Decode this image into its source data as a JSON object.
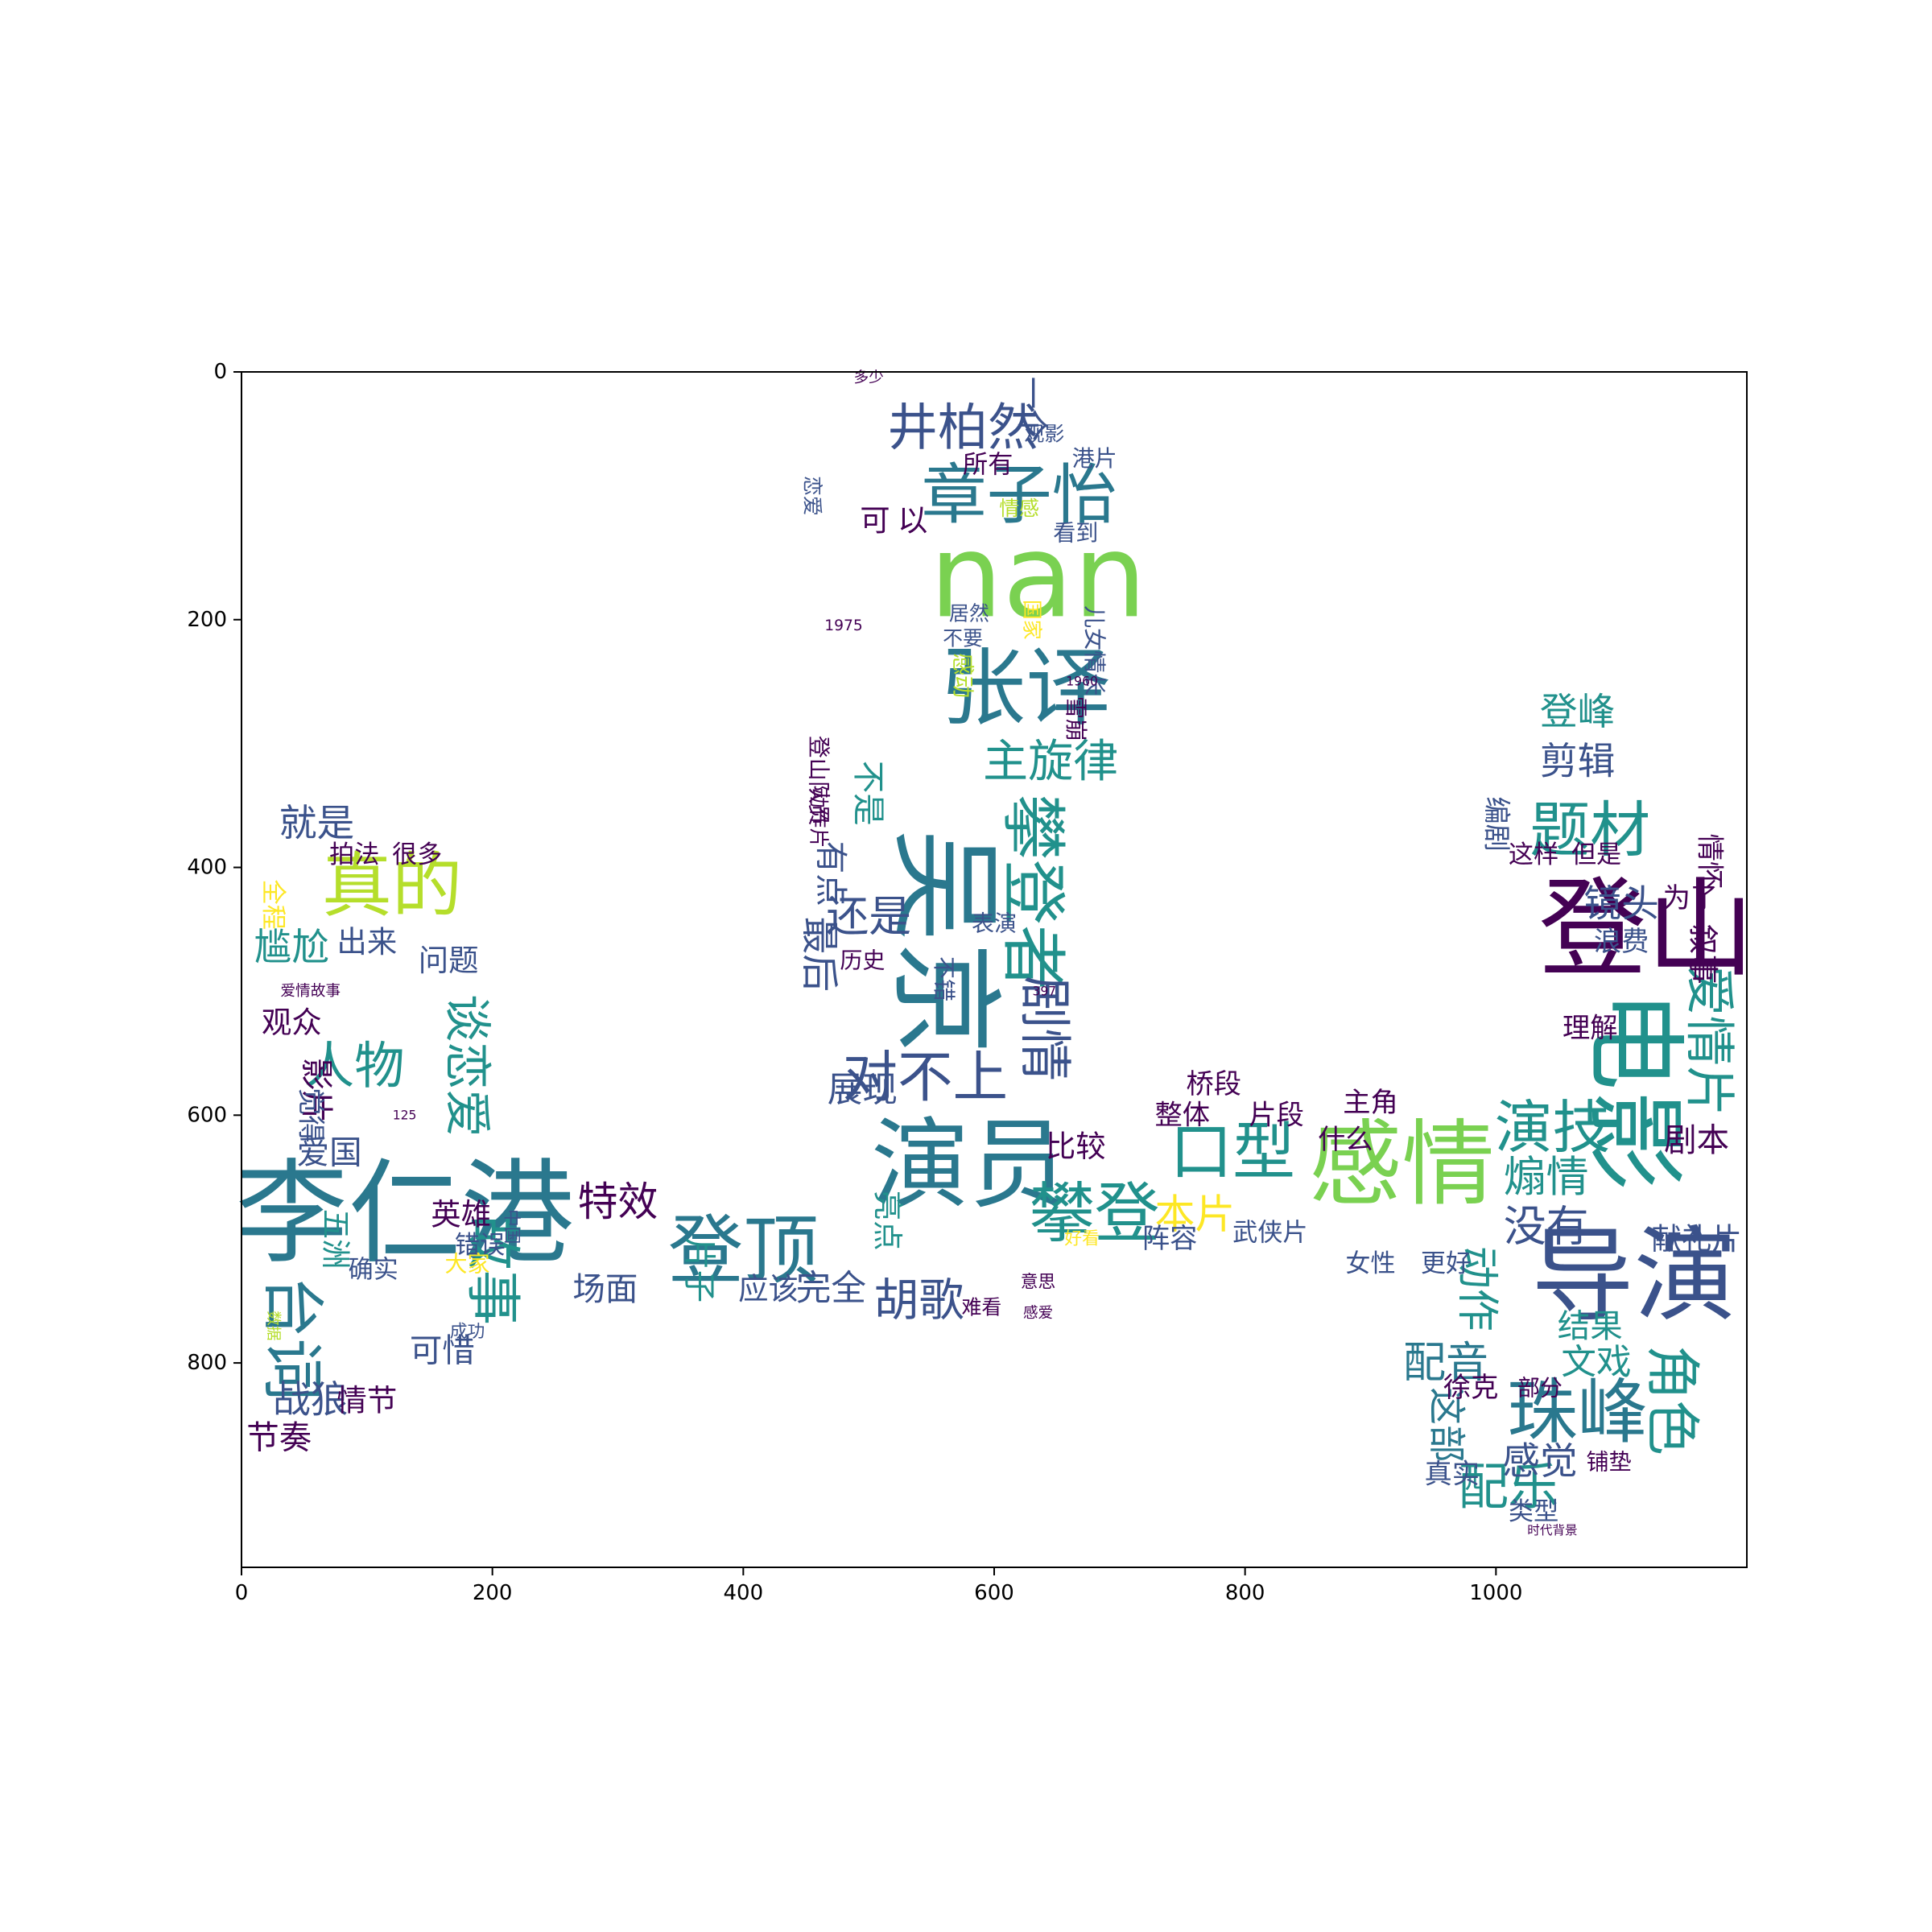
{
  "chart_data": {
    "type": "wordcloud",
    "title": "",
    "xlabel": "",
    "ylabel": "",
    "xlim": [
      0,
      1200
    ],
    "ylim": [
      965,
      0
    ],
    "x_ticks": [
      0,
      200,
      400,
      600,
      800,
      1000
    ],
    "y_ticks": [
      0,
      200,
      400,
      600,
      800
    ],
    "x_tick_labels": [
      "0",
      "200",
      "400",
      "600",
      "800",
      "1000"
    ],
    "y_tick_labels": [
      "0",
      "200",
      "400",
      "600",
      "800"
    ],
    "colormap": "viridis",
    "words": [
      {
        "text": "nan",
        "x": 635,
        "y": 165,
        "size": 92,
        "color": "#7ad151",
        "rot": 0
      },
      {
        "text": "张译",
        "x": 625,
        "y": 255,
        "size": 68,
        "color": "#2a788e",
        "rot": 0
      },
      {
        "text": "章子怡",
        "x": 620,
        "y": 100,
        "size": 52,
        "color": "#2a788e",
        "rot": 0
      },
      {
        "text": "井柏然",
        "x": 575,
        "y": 45,
        "size": 40,
        "color": "#3b528b",
        "rot": 0
      },
      {
        "text": "吴京",
        "x": 560,
        "y": 460,
        "size": 90,
        "color": "#2a788e",
        "rot": 90
      },
      {
        "text": "攀登者",
        "x": 630,
        "y": 420,
        "size": 52,
        "color": "#21918c",
        "rot": 90
      },
      {
        "text": "剧情",
        "x": 640,
        "y": 530,
        "size": 42,
        "color": "#3b528b",
        "rot": 90
      },
      {
        "text": "主旋律",
        "x": 645,
        "y": 315,
        "size": 36,
        "color": "#21918c",
        "rot": 0
      },
      {
        "text": "演员",
        "x": 580,
        "y": 640,
        "size": 78,
        "color": "#2a788e",
        "rot": 0
      },
      {
        "text": "对不上",
        "x": 545,
        "y": 570,
        "size": 44,
        "color": "#3b528b",
        "rot": 0
      },
      {
        "text": "登顶",
        "x": 400,
        "y": 710,
        "size": 60,
        "color": "#2a788e",
        "rot": 0
      },
      {
        "text": "特效",
        "x": 300,
        "y": 670,
        "size": 32,
        "color": "#440154",
        "rot": 0
      },
      {
        "text": "场面",
        "x": 290,
        "y": 740,
        "size": 26,
        "color": "#3b528b",
        "rot": 0
      },
      {
        "text": "胡歌",
        "x": 540,
        "y": 750,
        "size": 36,
        "color": "#3b528b",
        "rot": 0
      },
      {
        "text": "攀登",
        "x": 680,
        "y": 680,
        "size": 52,
        "color": "#21918c",
        "rot": 0
      },
      {
        "text": "口型",
        "x": 790,
        "y": 630,
        "size": 50,
        "color": "#21918c",
        "rot": 0
      },
      {
        "text": "感情",
        "x": 925,
        "y": 640,
        "size": 74,
        "color": "#7ad151",
        "rot": 0
      },
      {
        "text": "本片",
        "x": 760,
        "y": 680,
        "size": 32,
        "color": "#fde725",
        "rot": 0
      },
      {
        "text": "李仁港",
        "x": 130,
        "y": 680,
        "size": 90,
        "color": "#2a788e",
        "rot": 0
      },
      {
        "text": "真的",
        "x": 120,
        "y": 415,
        "size": 56,
        "color": "#b5de2b",
        "rot": 0
      },
      {
        "text": "人物",
        "x": 90,
        "y": 560,
        "size": 40,
        "color": "#21918c",
        "rot": 0
      },
      {
        "text": "台词",
        "x": 40,
        "y": 780,
        "size": 50,
        "color": "#2a788e",
        "rot": 90
      },
      {
        "text": "故事",
        "x": 200,
        "y": 725,
        "size": 44,
        "color": "#21918c",
        "rot": 90
      },
      {
        "text": "谈恋爱",
        "x": 180,
        "y": 560,
        "size": 38,
        "color": "#21918c",
        "rot": 90
      },
      {
        "text": "战狼",
        "x": 55,
        "y": 830,
        "size": 30,
        "color": "#3b528b",
        "rot": 0
      },
      {
        "text": "尴尬",
        "x": 40,
        "y": 465,
        "size": 30,
        "color": "#21918c",
        "rot": 0
      },
      {
        "text": "就是",
        "x": 60,
        "y": 365,
        "size": 30,
        "color": "#3b528b",
        "rot": 0
      },
      {
        "text": "登山",
        "x": 1120,
        "y": 450,
        "size": 86,
        "color": "#440154",
        "rot": 0
      },
      {
        "text": "电影",
        "x": 1110,
        "y": 580,
        "size": 80,
        "color": "#21918c",
        "rot": 90
      },
      {
        "text": "导演",
        "x": 1110,
        "y": 730,
        "size": 82,
        "color": "#3b528b",
        "rot": 0
      },
      {
        "text": "珠峰",
        "x": 1065,
        "y": 840,
        "size": 56,
        "color": "#2a788e",
        "rot": 0
      },
      {
        "text": "题材",
        "x": 1075,
        "y": 370,
        "size": 48,
        "color": "#21918c",
        "rot": 0
      },
      {
        "text": "演技",
        "x": 1045,
        "y": 610,
        "size": 46,
        "color": "#21918c",
        "rot": 0
      },
      {
        "text": "配乐",
        "x": 1010,
        "y": 900,
        "size": 40,
        "color": "#21918c",
        "rot": 0
      },
      {
        "text": "角色",
        "x": 1140,
        "y": 830,
        "size": 44,
        "color": "#21918c",
        "rot": 90
      },
      {
        "text": "爱情片",
        "x": 1170,
        "y": 540,
        "size": 40,
        "color": "#21918c",
        "rot": 90
      },
      {
        "text": "登峰",
        "x": 1065,
        "y": 275,
        "size": 30,
        "color": "#21918c",
        "rot": 0
      },
      {
        "text": "剪辑",
        "x": 1065,
        "y": 315,
        "size": 30,
        "color": "#3b528b",
        "rot": 0
      },
      {
        "text": "镜头",
        "x": 1100,
        "y": 430,
        "size": 30,
        "color": "#3b528b",
        "rot": 0
      },
      {
        "text": "没有",
        "x": 1040,
        "y": 690,
        "size": 34,
        "color": "#3b528b",
        "rot": 0
      },
      {
        "text": "煽情",
        "x": 1040,
        "y": 650,
        "size": 34,
        "color": "#21918c",
        "rot": 0
      },
      {
        "text": "配音",
        "x": 960,
        "y": 800,
        "size": 34,
        "color": "#2a788e",
        "rot": 0
      },
      {
        "text": "感觉",
        "x": 1035,
        "y": 880,
        "size": 30,
        "color": "#3b528b",
        "rot": 0
      },
      {
        "text": "最后",
        "x": 460,
        "y": 470,
        "size": 30,
        "color": "#3b528b",
        "rot": 90
      },
      {
        "text": "还是",
        "x": 500,
        "y": 440,
        "size": 34,
        "color": "#3b528b",
        "rot": 0
      },
      {
        "text": "一个",
        "x": 630,
        "y": 30,
        "size": 26,
        "color": "#3b528b",
        "rot": 90
      },
      {
        "text": "爱国",
        "x": 70,
        "y": 630,
        "size": 26,
        "color": "#3b528b",
        "rot": 0
      },
      {
        "text": "英雄",
        "x": 175,
        "y": 680,
        "size": 24,
        "color": "#440154",
        "rot": 0
      },
      {
        "text": "节奏",
        "x": 30,
        "y": 860,
        "size": 26,
        "color": "#440154",
        "rot": 0
      },
      {
        "text": "情节",
        "x": 100,
        "y": 830,
        "size": 24,
        "color": "#440154",
        "rot": 0
      },
      {
        "text": "可惜",
        "x": 160,
        "y": 790,
        "size": 26,
        "color": "#3b528b",
        "rot": 0
      },
      {
        "text": "完全",
        "x": 470,
        "y": 740,
        "size": 28,
        "color": "#3b528b",
        "rot": 0
      },
      {
        "text": "应该",
        "x": 420,
        "y": 740,
        "size": 24,
        "color": "#3b528b",
        "rot": 0
      },
      {
        "text": "展现",
        "x": 495,
        "y": 580,
        "size": 28,
        "color": "#3b528b",
        "rot": 0
      },
      {
        "text": "剧本",
        "x": 1160,
        "y": 620,
        "size": 26,
        "color": "#440154",
        "rot": 0
      },
      {
        "text": "结果",
        "x": 1075,
        "y": 770,
        "size": 26,
        "color": "#21918c",
        "rot": 0
      },
      {
        "text": "文戏",
        "x": 1080,
        "y": 800,
        "size": 28,
        "color": "#21918c",
        "rot": 0
      },
      {
        "text": "动作",
        "x": 985,
        "y": 740,
        "size": 34,
        "color": "#21918c",
        "rot": 90
      },
      {
        "text": "这部",
        "x": 960,
        "y": 850,
        "size": 30,
        "color": "#2a788e",
        "rot": 90
      },
      {
        "text": "观众",
        "x": 40,
        "y": 525,
        "size": 24,
        "color": "#440154",
        "rot": 0
      },
      {
        "text": "影片",
        "x": 60,
        "y": 580,
        "size": 26,
        "color": "#440154",
        "rot": 90
      },
      {
        "text": "问题",
        "x": 165,
        "y": 475,
        "size": 24,
        "color": "#3b528b",
        "rot": 0
      },
      {
        "text": "出来",
        "x": 100,
        "y": 460,
        "size": 24,
        "color": "#3b528b",
        "rot": 0
      },
      {
        "text": "比较",
        "x": 665,
        "y": 625,
        "size": 24,
        "color": "#440154",
        "rot": 0
      },
      {
        "text": "整体",
        "x": 750,
        "y": 600,
        "size": 22,
        "color": "#440154",
        "rot": 0
      },
      {
        "text": "桥段",
        "x": 775,
        "y": 575,
        "size": 22,
        "color": "#440154",
        "rot": 0
      },
      {
        "text": "片段",
        "x": 825,
        "y": 600,
        "size": 22,
        "color": "#440154",
        "rot": 0
      },
      {
        "text": "主角",
        "x": 900,
        "y": 590,
        "size": 22,
        "color": "#440154",
        "rot": 0
      },
      {
        "text": "什么",
        "x": 880,
        "y": 620,
        "size": 22,
        "color": "#440154",
        "rot": 0
      },
      {
        "text": "阵容",
        "x": 740,
        "y": 700,
        "size": 22,
        "color": "#3b528b",
        "rot": 0
      },
      {
        "text": "武侠片",
        "x": 820,
        "y": 695,
        "size": 20,
        "color": "#3b528b",
        "rot": 0
      },
      {
        "text": "女性",
        "x": 900,
        "y": 720,
        "size": 20,
        "color": "#3b528b",
        "rot": 0
      },
      {
        "text": "更好",
        "x": 960,
        "y": 720,
        "size": 20,
        "color": "#3b528b",
        "rot": 0
      },
      {
        "text": "所有",
        "x": 595,
        "y": 75,
        "size": 20,
        "color": "#440154",
        "rot": 0
      },
      {
        "text": "以",
        "x": 535,
        "y": 120,
        "size": 24,
        "color": "#440154",
        "rot": 0
      },
      {
        "text": "可",
        "x": 505,
        "y": 120,
        "size": 24,
        "color": "#440154",
        "rot": 0
      },
      {
        "text": "看到",
        "x": 665,
        "y": 130,
        "size": 18,
        "color": "#3b528b",
        "rot": 0
      },
      {
        "text": "港片",
        "x": 680,
        "y": 70,
        "size": 18,
        "color": "#3b528b",
        "rot": 0
      },
      {
        "text": "儿女情长",
        "x": 680,
        "y": 225,
        "size": 18,
        "color": "#3b528b",
        "rot": 90
      },
      {
        "text": "五洲",
        "x": 75,
        "y": 700,
        "size": 24,
        "color": "#21918c",
        "rot": 90
      },
      {
        "text": "确实",
        "x": 105,
        "y": 725,
        "size": 20,
        "color": "#3b528b",
        "rot": 0
      },
      {
        "text": "错误",
        "x": 190,
        "y": 705,
        "size": 20,
        "color": "#3b528b",
        "rot": 0
      },
      {
        "text": "大家",
        "x": 180,
        "y": 720,
        "size": 18,
        "color": "#fde725",
        "rot": 0
      },
      {
        "text": "浪费",
        "x": 1100,
        "y": 460,
        "size": 22,
        "color": "#3b528b",
        "rot": 0
      },
      {
        "text": "理解",
        "x": 1075,
        "y": 530,
        "size": 22,
        "color": "#440154",
        "rot": 0
      },
      {
        "text": "叙事",
        "x": 1165,
        "y": 470,
        "size": 24,
        "color": "#440154",
        "rot": 90
      },
      {
        "text": "献礼片",
        "x": 1160,
        "y": 700,
        "size": 24,
        "color": "#3b528b",
        "rot": 0
      },
      {
        "text": "为了",
        "x": 1155,
        "y": 425,
        "size": 22,
        "color": "#440154",
        "rot": 0
      },
      {
        "text": "真实",
        "x": 965,
        "y": 890,
        "size": 22,
        "color": "#3b528b",
        "rot": 0
      },
      {
        "text": "徐克",
        "x": 980,
        "y": 820,
        "size": 22,
        "color": "#440154",
        "rot": 0
      },
      {
        "text": "类型",
        "x": 1030,
        "y": 920,
        "size": 20,
        "color": "#3b528b",
        "rot": 0
      },
      {
        "text": "部分",
        "x": 1035,
        "y": 820,
        "size": 18,
        "color": "#440154",
        "rot": 0
      },
      {
        "text": "铺垫",
        "x": 1090,
        "y": 880,
        "size": 18,
        "color": "#440154",
        "rot": 0
      },
      {
        "text": "这样",
        "x": 1030,
        "y": 390,
        "size": 20,
        "color": "#440154",
        "rot": 0
      },
      {
        "text": "但是",
        "x": 1080,
        "y": 390,
        "size": 20,
        "color": "#440154",
        "rot": 0
      },
      {
        "text": "情怀",
        "x": 1170,
        "y": 395,
        "size": 22,
        "color": "#440154",
        "rot": 90
      },
      {
        "text": "编剧",
        "x": 1000,
        "y": 365,
        "size": 22,
        "color": "#3b528b",
        "rot": 90
      },
      {
        "text": "历史",
        "x": 495,
        "y": 475,
        "size": 18,
        "color": "#440154",
        "rot": 0
      },
      {
        "text": "片子",
        "x": 365,
        "y": 725,
        "size": 26,
        "color": "#21918c",
        "rot": 90
      },
      {
        "text": "雪崩",
        "x": 665,
        "y": 280,
        "size": 18,
        "color": "#440154",
        "rot": 90
      },
      {
        "text": "拍法",
        "x": 90,
        "y": 390,
        "size": 20,
        "color": "#440154",
        "rot": 0
      },
      {
        "text": "很多",
        "x": 140,
        "y": 390,
        "size": 20,
        "color": "#440154",
        "rot": 0
      },
      {
        "text": "觉得",
        "x": 55,
        "y": 600,
        "size": 22,
        "color": "#3b528b",
        "rot": 90
      },
      {
        "text": "全程",
        "x": 25,
        "y": 430,
        "size": 20,
        "color": "#fde725",
        "rot": 90
      },
      {
        "text": "感动",
        "x": 575,
        "y": 245,
        "size": 18,
        "color": "#b5de2b",
        "rot": 90
      },
      {
        "text": "不要",
        "x": 575,
        "y": 215,
        "size": 16,
        "color": "#3b528b",
        "rot": 0
      },
      {
        "text": "居然",
        "x": 580,
        "y": 195,
        "size": 16,
        "color": "#3b528b",
        "rot": 0
      },
      {
        "text": "恋爱",
        "x": 455,
        "y": 100,
        "size": 16,
        "color": "#3b528b",
        "rot": 90
      },
      {
        "text": "情感",
        "x": 620,
        "y": 110,
        "size": 16,
        "color": "#b5de2b",
        "rot": 0
      },
      {
        "text": "观影",
        "x": 640,
        "y": 50,
        "size": 16,
        "color": "#3b528b",
        "rot": 0
      },
      {
        "text": "国家",
        "x": 630,
        "y": 200,
        "size": 16,
        "color": "#fde725",
        "rot": 90
      },
      {
        "text": "成功",
        "x": 180,
        "y": 775,
        "size": 14,
        "color": "#3b528b",
        "rot": 0
      },
      {
        "text": "中国",
        "x": 215,
        "y": 690,
        "size": 14,
        "color": "#3b528b",
        "rot": 90
      },
      {
        "text": "数据",
        "x": 25,
        "y": 770,
        "size": 12,
        "color": "#b5de2b",
        "rot": 90
      },
      {
        "text": "爱情故事",
        "x": 55,
        "y": 500,
        "size": 12,
        "color": "#440154",
        "rot": 0
      },
      {
        "text": "时代背景",
        "x": 1045,
        "y": 935,
        "size": 10,
        "color": "#440154",
        "rot": 0
      },
      {
        "text": "1975",
        "x": 480,
        "y": 205,
        "size": 12,
        "color": "#440154",
        "rot": 0
      },
      {
        "text": "1960",
        "x": 670,
        "y": 250,
        "size": 10,
        "color": "#440154",
        "rot": 0
      },
      {
        "text": "397",
        "x": 640,
        "y": 500,
        "size": 10,
        "color": "#440154",
        "rot": 0
      },
      {
        "text": "125",
        "x": 130,
        "y": 600,
        "size": 10,
        "color": "#440154",
        "rot": 0
      },
      {
        "text": "多少",
        "x": 500,
        "y": 5,
        "size": 12,
        "color": "#440154",
        "rot": 0
      },
      {
        "text": "不错",
        "x": 560,
        "y": 490,
        "size": 18,
        "color": "#3b528b",
        "rot": 90
      },
      {
        "text": "表演",
        "x": 600,
        "y": 445,
        "size": 18,
        "color": "#3b528b",
        "rot": 0
      },
      {
        "text": "有点",
        "x": 470,
        "y": 405,
        "size": 26,
        "color": "#3b528b",
        "rot": 90
      },
      {
        "text": "不是",
        "x": 500,
        "y": 340,
        "size": 26,
        "color": "#21918c",
        "rot": 90
      },
      {
        "text": "登山队员",
        "x": 460,
        "y": 330,
        "size": 18,
        "color": "#440154",
        "rot": 90
      },
      {
        "text": "动作片",
        "x": 460,
        "y": 360,
        "size": 16,
        "color": "#440154",
        "rot": 90
      },
      {
        "text": "意思",
        "x": 635,
        "y": 735,
        "size": 14,
        "color": "#440154",
        "rot": 0
      },
      {
        "text": "好看",
        "x": 670,
        "y": 700,
        "size": 14,
        "color": "#fde725",
        "rot": 0
      },
      {
        "text": "亮点",
        "x": 515,
        "y": 685,
        "size": 24,
        "color": "#21918c",
        "rot": 90
      },
      {
        "text": "难看",
        "x": 590,
        "y": 755,
        "size": 16,
        "color": "#440154",
        "rot": 0
      },
      {
        "text": "感爱",
        "x": 635,
        "y": 760,
        "size": 12,
        "color": "#440154",
        "rot": 0
      }
    ]
  }
}
